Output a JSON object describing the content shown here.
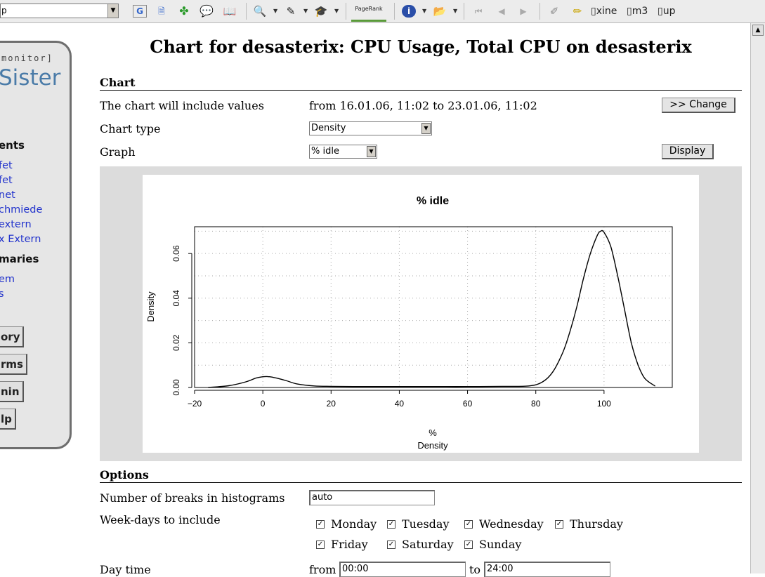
{
  "browser": {
    "address_value": "p",
    "pagerank_label": "PageRank",
    "bookmarks": [
      "xine",
      "m3",
      "up"
    ]
  },
  "sidebar": {
    "monitor_text": "monitor]",
    "logo_text": "Sister",
    "section1": "ents",
    "links1": [
      "fet",
      "fet",
      "net",
      "chmiede",
      "extern",
      "x Extern"
    ],
    "section2": "maries",
    "links2": [
      "em",
      "s"
    ],
    "buttons": [
      "ory",
      "rms",
      "nin",
      "lp"
    ]
  },
  "page": {
    "title": "Chart for desasterix: CPU Usage, Total CPU on desasterix"
  },
  "chart_section": {
    "heading": "Chart",
    "include_label": "The chart will include values",
    "include_value": "from 16.01.06, 11:02 to 23.01.06, 11:02",
    "change_button": ">> Change",
    "chart_type_label": "Chart type",
    "chart_type_value": "Density",
    "graph_label": "Graph",
    "graph_value": "% idle",
    "display_button": "Display"
  },
  "chart_data": {
    "type": "line",
    "title": "% idle",
    "xlabel": "%",
    "xlabel_sub": "Density",
    "ylabel": "Density",
    "xlim": [
      -20,
      120
    ],
    "ylim": [
      0,
      0.072
    ],
    "x_ticks": [
      -20,
      0,
      20,
      40,
      60,
      80,
      100
    ],
    "x_tick_labels": [
      "−20",
      "0",
      "20",
      "40",
      "60",
      "80",
      "100"
    ],
    "y_ticks": [
      0,
      0.02,
      0.04,
      0.06
    ],
    "y_tick_labels": [
      "0.00",
      "0.02",
      "0.04",
      "0.06"
    ],
    "grid": true,
    "line_color": "#000000",
    "x": [
      -16,
      -10,
      -5,
      -2,
      0,
      2,
      4,
      7,
      10,
      15,
      20,
      30,
      40,
      50,
      60,
      70,
      78,
      82,
      85,
      88,
      90,
      92,
      94,
      96,
      98,
      99,
      100,
      102,
      104,
      106,
      108,
      110,
      112,
      115
    ],
    "y": [
      0.0,
      0.0008,
      0.0025,
      0.0042,
      0.0048,
      0.0048,
      0.0042,
      0.003,
      0.0016,
      0.0007,
      0.0005,
      0.0004,
      0.0004,
      0.0004,
      0.0004,
      0.0005,
      0.0007,
      0.0025,
      0.007,
      0.016,
      0.025,
      0.036,
      0.049,
      0.06,
      0.068,
      0.07,
      0.0695,
      0.063,
      0.05,
      0.035,
      0.02,
      0.01,
      0.004,
      0.0006
    ]
  },
  "options": {
    "heading": "Options",
    "breaks_label": "Number of breaks in histograms",
    "breaks_value": "auto",
    "weekdays_label": "Week-days to include",
    "days": [
      "Monday",
      "Tuesday",
      "Wednesday",
      "Thursday",
      "Friday",
      "Saturday",
      "Sunday"
    ],
    "checked_mark": "✓",
    "daytime_label": "Day time",
    "from_label": "from",
    "from_value": "00:00",
    "to_label": "to",
    "to_value": "24:00"
  }
}
